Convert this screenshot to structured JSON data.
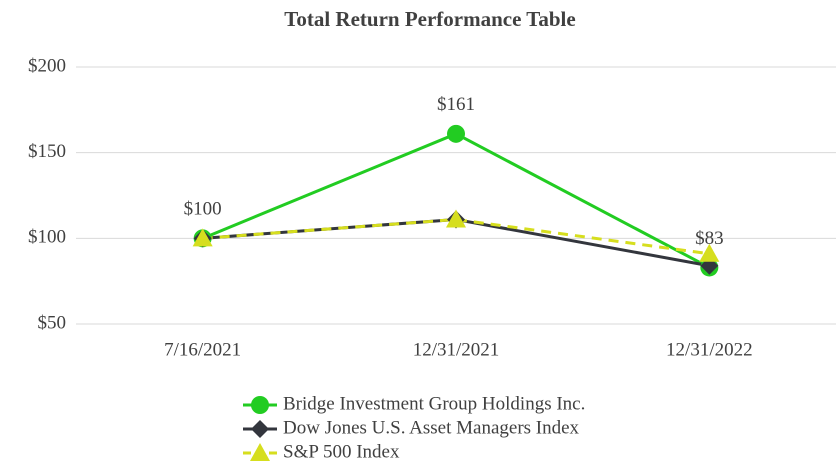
{
  "chart_data": {
    "type": "line",
    "title": "Total Return Performance Table",
    "categories": [
      "7/16/2021",
      "12/31/2021",
      "12/31/2022"
    ],
    "series": [
      {
        "name": "Bridge Investment Group Holdings Inc.",
        "color": "#22cc22",
        "marker": "circle",
        "dashed": false,
        "values": [
          100,
          161,
          83
        ],
        "value_labels": [
          "$100",
          "$161",
          "$83"
        ]
      },
      {
        "name": "Dow Jones U.S. Asset Managers Index",
        "color": "#33363d",
        "marker": "diamond",
        "dashed": false,
        "values": [
          100,
          111,
          84
        ]
      },
      {
        "name": "S&P 500 Index",
        "color": "#d6de1e",
        "marker": "triangle",
        "dashed": true,
        "values": [
          100,
          111,
          91
        ]
      }
    ],
    "ylim": [
      50,
      200
    ],
    "yticks": [
      {
        "value": 50,
        "label": "$50"
      },
      {
        "value": 100,
        "label": "$100"
      },
      {
        "value": 150,
        "label": "$150"
      },
      {
        "value": 200,
        "label": "$200"
      }
    ],
    "grid": true,
    "legend": "bottom"
  }
}
